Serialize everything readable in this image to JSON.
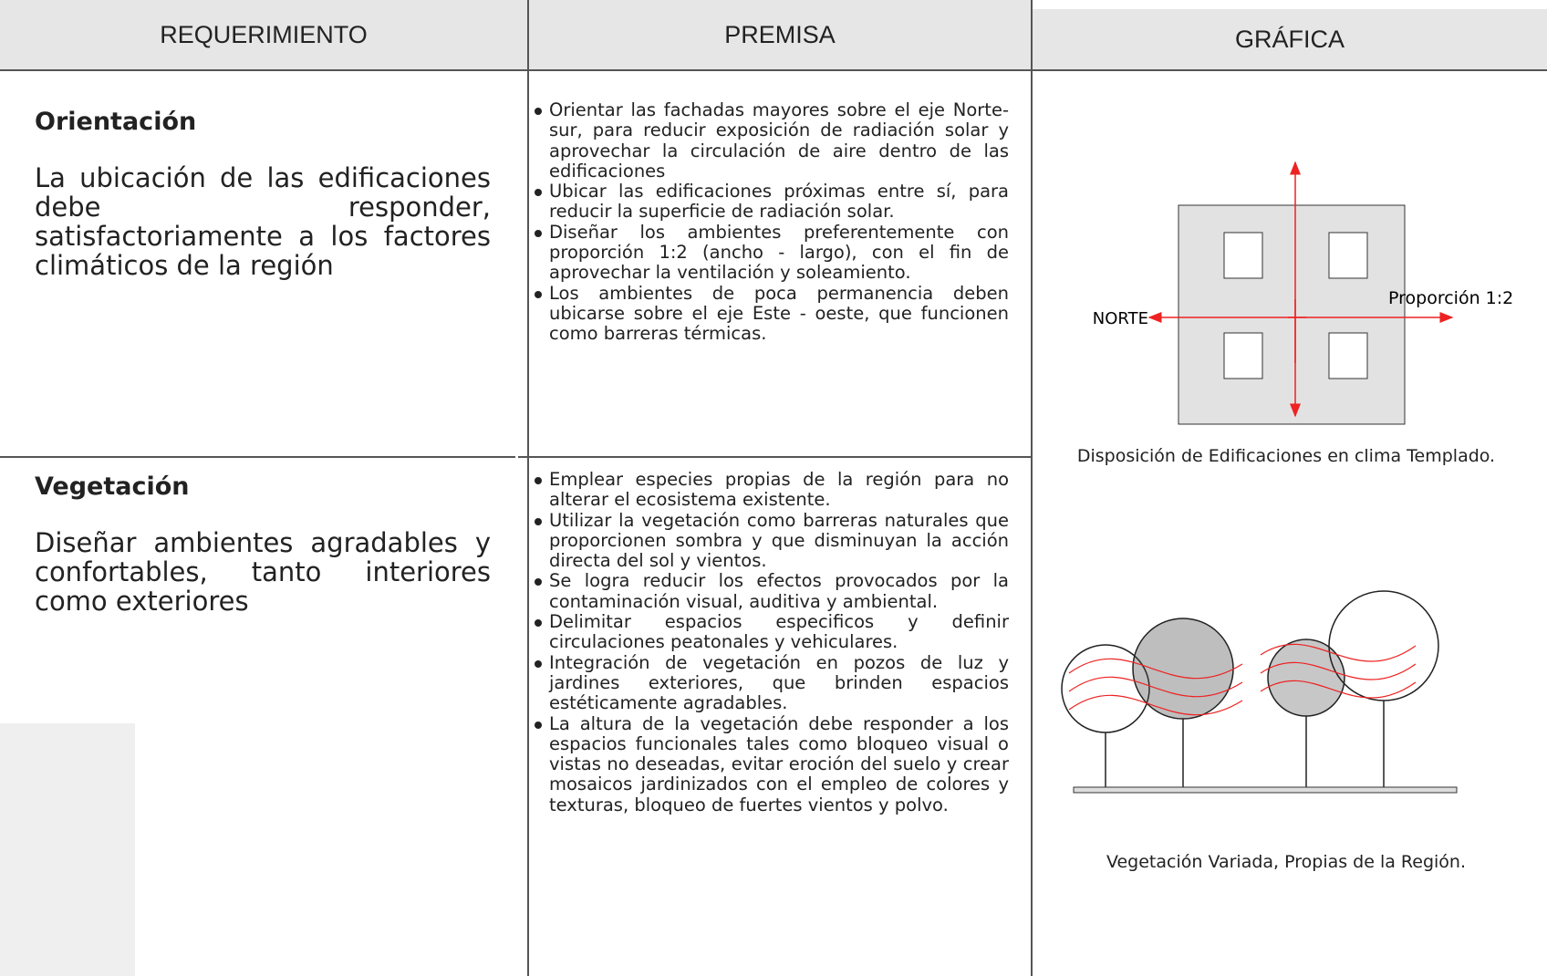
{
  "header": {
    "columns": [
      "REQUERIMIENTO",
      "PREMISA",
      "GRÁFICA"
    ]
  },
  "rows": [
    {
      "title": "Orientación",
      "description": "La ubicación de las edificaciones debe responder, satisfactoriamente a los factores climáticos de la región",
      "premises": [
        "Orientar las fachadas mayores sobre el eje Norte-sur, para reducir exposición de radiación solar y aprovechar la circulación de aire dentro de las edificaciones",
        "Ubicar las edificaciones próximas entre sí, para reducir la superficie de radiación solar.",
        "Diseñar los ambientes preferentemente con proporción 1:2 (ancho - largo), con el fin de aprovechar la ventilación y soleamiento.",
        "Los ambientes de poca permanencia deben ubicarse sobre el eje Este - oeste, que funcionen como barreras térmicas."
      ]
    },
    {
      "title": "Vegetación",
      "description": "Diseñar ambientes agradables y confortables, tanto interiores como exteriores",
      "premises": [
        "Emplear especies propias de la región para no alterar el ecosistema existente.",
        "Utilizar la vegetación como barreras naturales que proporcionen sombra y que disminuyan la acción directa del sol y vientos.",
        "Se logra reducir los efectos provocados por la contaminación visual, auditiva y ambiental.",
        "Delimitar espacios especificos y definir circulaciones peatonales y vehiculares.",
        "Integración de vegetación en pozos de luz y jardines exteriores, que brinden espacios estéticamente agradables.",
        "La altura de la vegetación debe responder a los espacios funcionales tales como bloqueo visual o vistas no deseadas, evitar eroción del suelo y crear mosaicos jardinizados con el empleo de colores y texturas, bloqueo de fuertes vientos y polvo."
      ]
    }
  ],
  "graphics": {
    "diagram": {
      "north_label": "NORTE",
      "proportion_label": "Proporción 1:2",
      "caption": "Disposición de Edificaciones en clima Templado."
    },
    "vegetation_caption": "Vegetación Variada, Propias de la Región."
  }
}
